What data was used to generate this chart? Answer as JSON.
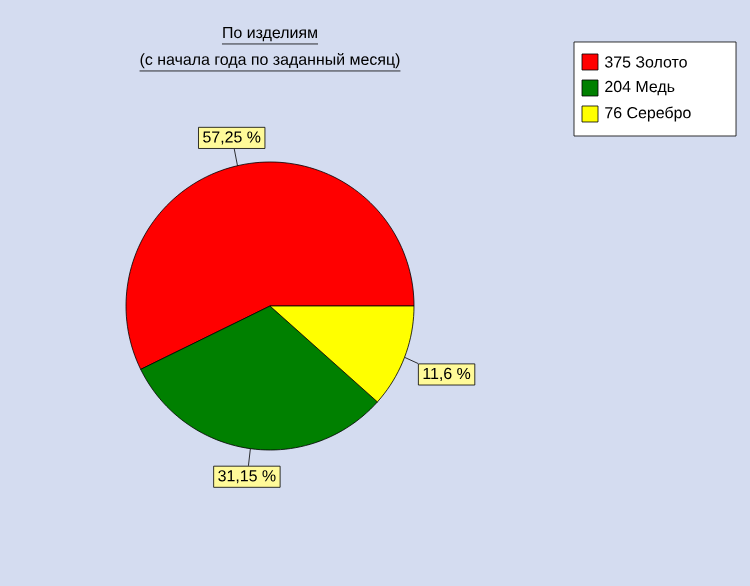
{
  "chart_data": {
    "type": "pie",
    "title": "По изделиям",
    "subtitle": "(с начала года по заданный месяц)",
    "categories": [
      "375 Золото",
      "204 Медь",
      "76 Серебро"
    ],
    "values": [
      57.25,
      31.15,
      11.6
    ],
    "colors": [
      "#ff0000",
      "#008000",
      "#ffff00"
    ],
    "value_labels": [
      "57,25 %",
      "31,15 %",
      "11,6 %"
    ],
    "legend": "top right"
  }
}
